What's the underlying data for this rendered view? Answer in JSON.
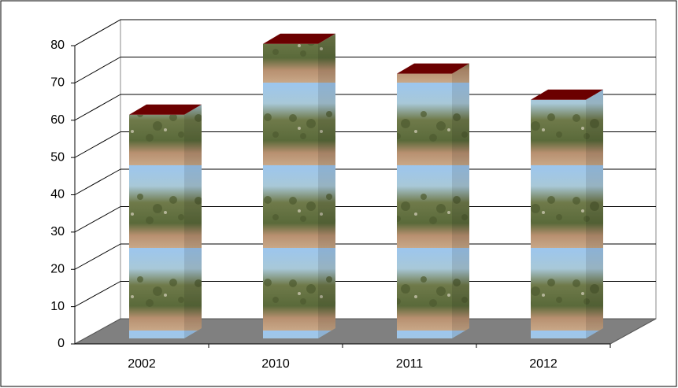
{
  "chart_data": {
    "type": "bar3d",
    "categories": [
      "2002",
      "2010",
      "2011",
      "2012"
    ],
    "values": [
      60,
      79,
      71,
      64
    ],
    "ylim": [
      0,
      80
    ],
    "yticks": [
      0,
      10,
      20,
      30,
      40,
      50,
      60,
      70,
      80
    ],
    "grid": true,
    "top_color": "#6b0000"
  }
}
